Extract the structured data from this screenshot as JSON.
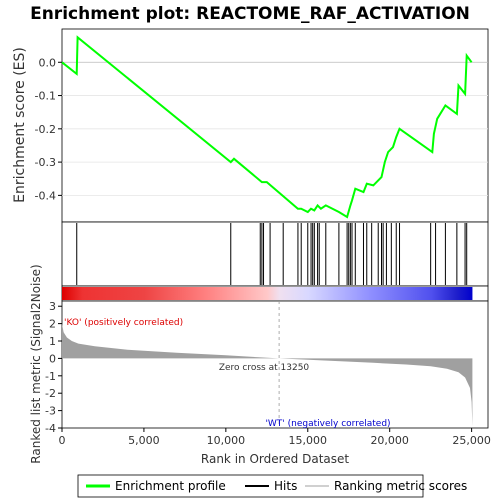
{
  "chart_data": {
    "type": "line",
    "title": "Enrichment plot: REACTOME_RAF_ACTIVATION",
    "es_panel": {
      "ylabel": "Enrichment score (ES)",
      "ylim": [
        -0.48,
        0.1
      ],
      "yticks": [
        0.0,
        -0.1,
        -0.2,
        -0.3,
        -0.4
      ],
      "ytick_labels": [
        "0.0",
        "-0.1",
        "-0.2",
        "-0.3",
        "-0.4"
      ],
      "color": "#00ff00",
      "series": [
        {
          "x": [
            0,
            900,
            950,
            10300,
            10500,
            12200,
            12500,
            14400,
            14600,
            15000,
            15200,
            15400,
            15600,
            15800,
            16100,
            16900,
            17400,
            17600,
            17700,
            17900,
            18400,
            18600,
            19000,
            19500,
            19700,
            19900,
            20200,
            20400,
            20600,
            22600,
            22700,
            22900,
            23400,
            24100,
            24200,
            24600,
            24700,
            25000
          ],
          "y": [
            0.0,
            -0.035,
            0.075,
            -0.3,
            -0.29,
            -0.36,
            -0.36,
            -0.44,
            -0.44,
            -0.45,
            -0.44,
            -0.445,
            -0.43,
            -0.44,
            -0.43,
            -0.45,
            -0.465,
            -0.43,
            -0.415,
            -0.38,
            -0.39,
            -0.365,
            -0.37,
            -0.345,
            -0.3,
            -0.27,
            -0.255,
            -0.225,
            -0.2,
            -0.27,
            -0.215,
            -0.17,
            -0.13,
            -0.155,
            -0.07,
            -0.095,
            0.02,
            0.0
          ]
        }
      ]
    },
    "hits": {
      "x": [
        900,
        10300,
        12100,
        12200,
        12300,
        12700,
        13500,
        14400,
        14600,
        15000,
        15200,
        15300,
        15400,
        15600,
        15700,
        16100,
        16900,
        17400,
        17500,
        17600,
        17700,
        17900,
        18400,
        18600,
        18900,
        19300,
        19500,
        19600,
        19800,
        20100,
        20400,
        20600,
        22500,
        22800,
        23400,
        24100,
        24600,
        24700
      ]
    },
    "ranked_metric": {
      "ylabel": "Ranked list metric (Signal2Noise)",
      "xlabel": "Rank in Ordered Dataset",
      "xlim": [
        0,
        26000
      ],
      "ylim": [
        -4,
        3.3
      ],
      "yticks": [
        3,
        2,
        1,
        0,
        -1,
        -2,
        -3,
        -4
      ],
      "ytick_labels": [
        "3",
        "2",
        "1",
        "0",
        "-1",
        "-2",
        "-3",
        "-4"
      ],
      "xticks": [
        0,
        5000,
        10000,
        15000,
        20000,
        25000
      ],
      "xtick_labels": [
        "0",
        "5,000",
        "10,000",
        "15,000",
        "20,000",
        "25,000"
      ],
      "color": "#a0a0a0",
      "profile_x": [
        0,
        100,
        300,
        600,
        1000,
        2000,
        4000,
        7000,
        10000,
        13250,
        16000,
        19000,
        21000,
        22500,
        23500,
        24200,
        24600,
        24900,
        25000,
        25050
      ],
      "profile_y": [
        2.0,
        1.5,
        1.2,
        1.0,
        0.85,
        0.7,
        0.5,
        0.32,
        0.18,
        0.0,
        -0.12,
        -0.25,
        -0.35,
        -0.45,
        -0.6,
        -0.8,
        -1.1,
        -1.7,
        -2.5,
        -3.9
      ],
      "zero_cross": 13250,
      "zero_cross_label": "Zero cross at 13250",
      "pos_label": "'KO' (positively correlated)",
      "neg_label": "'WT' (negatively correlated)",
      "pos_color": "#dd0000",
      "neg_color": "#0000cc"
    },
    "legend": {
      "placement": "bottom",
      "entries": [
        {
          "label": "Enrichment profile",
          "color": "#00ff00"
        },
        {
          "label": "Hits",
          "color": "#000000"
        },
        {
          "label": "Ranking metric scores",
          "color": "#d0d0d0"
        }
      ]
    }
  }
}
